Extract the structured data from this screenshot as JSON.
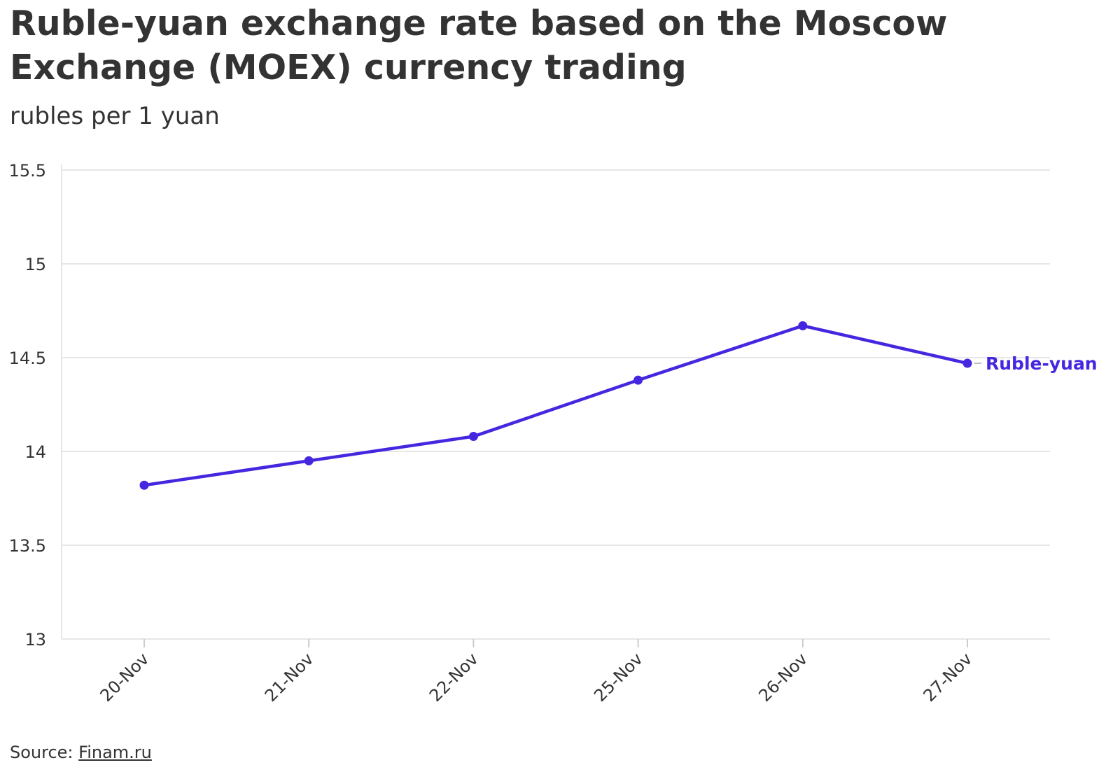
{
  "chart_data": {
    "type": "line",
    "title": "Ruble-yuan exchange rate based on the Moscow Exchange (MOEX) currency trading",
    "subtitle": "rubles per 1 yuan",
    "categories": [
      "20-Nov",
      "21-Nov",
      "22-Nov",
      "25-Nov",
      "26-Nov",
      "27-Nov"
    ],
    "series": [
      {
        "name": "Ruble-yuan",
        "color": "#4527e0",
        "values": [
          13.82,
          13.95,
          14.08,
          14.38,
          14.67,
          14.47
        ]
      }
    ],
    "ylim": [
      13,
      15.5
    ],
    "yticks": [
      13,
      13.5,
      14,
      14.5,
      15,
      15.5
    ],
    "ytick_labels": [
      "13",
      "13.5",
      "14",
      "14.5",
      "15",
      "15.5"
    ],
    "grid": "horizontal",
    "legend": "end-of-line label"
  },
  "source": {
    "label": "Source: ",
    "link_text": "Finam.ru"
  }
}
